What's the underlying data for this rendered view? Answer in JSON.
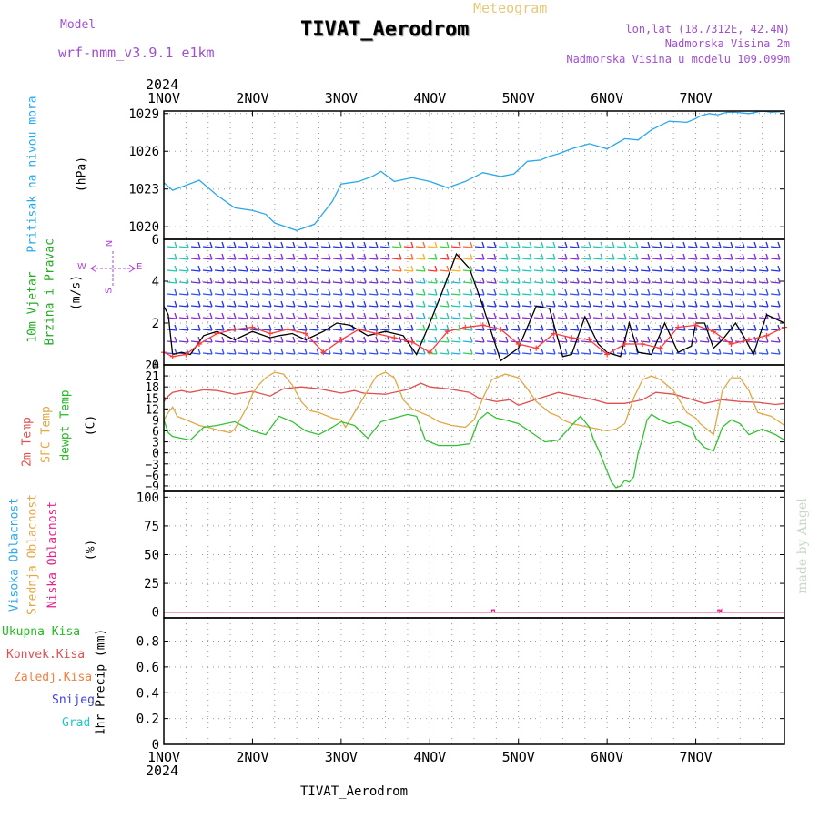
{
  "header": {
    "model_label": "Model",
    "model_name": "wrf-nmm_v3.9.1 e1km",
    "title": "TIVAT_Aerodrom",
    "subtitle": "Meteogram",
    "coords": "lon,lat (18.7312E, 42.4N)",
    "elev_station": "Nadmorska Visina 2m",
    "elev_model": "Nadmorska Visina u modelu 109.099m",
    "year": "2024",
    "footer_station": "TIVAT_Aerodrom",
    "credit": "made by Angel"
  },
  "colors": {
    "pressure": "#2aa8e8",
    "temp2m": "#e05050",
    "sfc": "#e0a848",
    "dew": "#33c233",
    "high": "#2aa8e8",
    "mid": "#e0a848",
    "low": "#e8208c",
    "wind_speed": "#000000",
    "wind_gust": "#ff3a3a",
    "wind_legend": "#b040e0"
  },
  "legend_labels": {
    "pressure": "Pritisak na nivou mora",
    "pressure_unit": "(hPa)",
    "wind1": "10m Vjetar",
    "wind2": "Brzina i Pravac",
    "wind_unit": "(m/s)",
    "compass_n": "N",
    "compass_s": "S",
    "compass_e": "E",
    "compass_w": "W",
    "temp2m": "2m Temp",
    "sfc": "SFC Temp",
    "dew": "dewpt Temp",
    "temp_unit": "(C)",
    "high": "Visoka Oblacnost",
    "mid": "Srednja Oblacnost",
    "low": "Niska Oblacnost",
    "cloud_unit": "(%)",
    "precip_total": "Ukupna Kisa",
    "precip_conv": "Konvek.Kisa",
    "precip_frz": "Zaledj.Kisa",
    "precip_snow": "Snijeg",
    "precip_grad": "Grad",
    "precip_unit": "1hr Precip (mm)"
  },
  "chart_data": [
    {
      "type": "line",
      "panel": "pressure",
      "x_categories": [
        "1NOV",
        "2NOV",
        "3NOV",
        "4NOV",
        "5NOV",
        "6NOV",
        "7NOV"
      ],
      "ylabel": "(hPa)",
      "yticks": [
        1020,
        1023,
        1026,
        1029
      ],
      "ylim": [
        1019,
        1029.2
      ],
      "grid": true,
      "series": [
        {
          "name": "Pritisak na nivou mora",
          "x": [
            0,
            0.1,
            0.25,
            0.4,
            0.6,
            0.8,
            1.0,
            1.15,
            1.25,
            1.5,
            1.7,
            1.9,
            2.0,
            2.2,
            2.35,
            2.45,
            2.6,
            2.8,
            3.0,
            3.2,
            3.4,
            3.6,
            3.8,
            3.95,
            4.1,
            4.25,
            4.35,
            4.45,
            4.6,
            4.8,
            5.0,
            5.2,
            5.35,
            5.5,
            5.7,
            5.9,
            6.0,
            6.05,
            6.15,
            6.25,
            6.35,
            6.45,
            6.6,
            6.75,
            6.85,
            6.95,
            7.0
          ],
          "values": [
            1023.5,
            1022.9,
            1023.3,
            1023.7,
            1022.5,
            1021.5,
            1021.3,
            1021.0,
            1020.3,
            1019.7,
            1020.2,
            1022.0,
            1023.4,
            1023.6,
            1024.0,
            1024.4,
            1023.6,
            1023.9,
            1023.6,
            1023.1,
            1023.6,
            1024.3,
            1024.0,
            1024.2,
            1025.2,
            1025.3,
            1025.6,
            1025.8,
            1026.2,
            1026.6,
            1026.2,
            1027.0,
            1026.9,
            1027.7,
            1028.4,
            1028.3,
            1028.6,
            1028.8,
            1029.0,
            1028.9,
            1029.1,
            1029.1,
            1029.0,
            1029.2,
            1029.1,
            1029.15,
            1029.2
          ]
        }
      ]
    },
    {
      "type": "line",
      "panel": "wind",
      "ylabel": "(m/s)",
      "yticks": [
        0,
        2,
        4,
        6
      ],
      "ylim": [
        0,
        6
      ],
      "grid": true,
      "series": [
        {
          "name": "speed",
          "x": [
            0,
            0.05,
            0.1,
            0.2,
            0.3,
            0.45,
            0.6,
            0.8,
            1.0,
            1.2,
            1.3,
            1.45,
            1.6,
            1.8,
            1.95,
            2.1,
            2.3,
            2.5,
            2.7,
            2.85,
            3.0,
            3.15,
            3.3,
            3.45,
            3.6,
            3.8,
            4.0,
            4.2,
            4.35,
            4.5,
            4.6,
            4.75,
            4.9,
            5.0,
            5.15,
            5.25,
            5.35,
            5.5,
            5.65,
            5.8,
            5.95,
            6.0,
            6.1,
            6.2,
            6.3,
            6.45,
            6.55,
            6.65,
            6.8,
            7.0
          ],
          "values": [
            2.8,
            2.4,
            0.5,
            0.6,
            0.5,
            1.4,
            1.6,
            1.2,
            1.6,
            1.3,
            1.4,
            1.5,
            1.2,
            1.6,
            2.0,
            1.9,
            1.4,
            1.6,
            1.4,
            0.5,
            2.0,
            3.6,
            5.3,
            4.6,
            2.8,
            0.2,
            0.8,
            2.8,
            2.7,
            0.4,
            0.5,
            2.3,
            1.0,
            0.6,
            0.4,
            2.0,
            0.6,
            0.5,
            2.0,
            0.6,
            0.9,
            2.0,
            2.0,
            0.8,
            1.2,
            2.0,
            1.3,
            0.5,
            2.4,
            2.0
          ]
        },
        {
          "name": "gust",
          "x": [
            0,
            0.1,
            0.25,
            0.4,
            0.6,
            0.8,
            1.0,
            1.2,
            1.4,
            1.6,
            1.8,
            2.0,
            2.2,
            2.4,
            2.6,
            2.8,
            3.0,
            3.2,
            3.4,
            3.6,
            3.8,
            4.0,
            4.2,
            4.4,
            4.6,
            4.8,
            5.0,
            5.2,
            5.4,
            5.6,
            5.8,
            6.0,
            6.2,
            6.4,
            6.6,
            6.8,
            7.0
          ],
          "values": [
            0.6,
            0.4,
            0.5,
            1.0,
            1.5,
            1.7,
            1.8,
            1.5,
            1.7,
            1.5,
            0.6,
            1.2,
            1.7,
            1.5,
            1.3,
            1.1,
            0.6,
            1.6,
            1.8,
            1.9,
            1.7,
            1.0,
            0.8,
            1.5,
            1.3,
            1.2,
            0.5,
            1.0,
            1.0,
            0.8,
            1.8,
            1.9,
            1.6,
            1.0,
            1.2,
            1.4,
            1.8
          ]
        }
      ]
    },
    {
      "type": "line",
      "panel": "temperature",
      "ylabel": "(C)",
      "yticks": [
        24,
        21,
        18,
        15,
        12,
        9,
        6,
        3,
        0,
        -3,
        -6,
        -9
      ],
      "ylim": [
        -10.5,
        24
      ],
      "grid": true,
      "series": [
        {
          "name": "2m Temp",
          "x": [
            0,
            0.05,
            0.1,
            0.2,
            0.3,
            0.45,
            0.6,
            0.8,
            1.0,
            1.2,
            1.35,
            1.55,
            1.75,
            2.0,
            2.15,
            2.25,
            2.5,
            2.75,
            2.9,
            3.0,
            3.2,
            3.45,
            3.55,
            3.75,
            3.9,
            4.0,
            4.25,
            4.45,
            4.65,
            4.85,
            5.0,
            5.2,
            5.4,
            5.55,
            5.75,
            5.9,
            6.1,
            6.3,
            6.5,
            6.7,
            6.9,
            7.0
          ],
          "values": [
            14,
            15.5,
            16.5,
            17,
            16.5,
            17.2,
            17,
            16,
            16.8,
            15.5,
            17.5,
            18,
            17.5,
            16.3,
            17,
            16.3,
            16,
            17.3,
            19,
            18,
            17.5,
            16.5,
            15,
            14,
            14.5,
            13,
            15,
            16.5,
            15.5,
            14.5,
            13.5,
            13.5,
            14.5,
            16.5,
            16,
            15,
            13.5,
            14.5,
            14,
            13.8,
            13.2,
            13.5
          ]
        },
        {
          "name": "SFC Temp",
          "x": [
            0,
            0.05,
            0.1,
            0.15,
            0.2,
            0.3,
            0.4,
            0.5,
            0.6,
            0.75,
            0.8,
            0.95,
            1.0,
            1.05,
            1.15,
            1.25,
            1.35,
            1.45,
            1.55,
            1.65,
            1.75,
            1.9,
            2.0,
            2.05,
            2.15,
            2.3,
            2.4,
            2.5,
            2.6,
            2.7,
            2.8,
            2.9,
            3.0,
            3.1,
            3.25,
            3.4,
            3.5,
            3.6,
            3.7,
            3.85,
            4.0,
            4.1,
            4.2,
            4.3,
            4.35,
            4.45,
            4.5,
            4.6,
            4.8,
            5.0,
            5.1,
            5.2,
            5.3,
            5.4,
            5.5,
            5.6,
            5.75,
            5.9,
            6.0,
            6.05,
            6.1,
            6.2,
            6.3,
            6.4,
            6.5,
            6.6,
            6.7,
            6.85,
            7.0
          ],
          "values": [
            9,
            11,
            12.5,
            10,
            9.5,
            8.5,
            7.5,
            7,
            6.3,
            5.5,
            6.5,
            13,
            16,
            18,
            20.5,
            22,
            21.5,
            18.5,
            14,
            11.5,
            11,
            9.5,
            9,
            7,
            11,
            17,
            21,
            22,
            20.5,
            14.5,
            12,
            11,
            10,
            8.5,
            7.5,
            7,
            9,
            15,
            20,
            21.5,
            20.5,
            17.5,
            14,
            12,
            11,
            10,
            9,
            8,
            7,
            6,
            6.5,
            8,
            15,
            20,
            21,
            20,
            17,
            11,
            9.5,
            8,
            7,
            5,
            17,
            20.5,
            20.5,
            17,
            11,
            10,
            7.5
          ]
        },
        {
          "name": "dewpt Temp",
          "x": [
            0,
            0.05,
            0.1,
            0.2,
            0.3,
            0.45,
            0.6,
            0.8,
            1.0,
            1.15,
            1.3,
            1.45,
            1.6,
            1.75,
            1.9,
            2.0,
            2.15,
            2.3,
            2.45,
            2.6,
            2.75,
            2.85,
            2.95,
            3.1,
            3.3,
            3.45,
            3.55,
            3.65,
            3.75,
            3.85,
            4.0,
            4.15,
            4.3,
            4.45,
            4.6,
            4.7,
            4.8,
            4.85,
            4.9,
            4.95,
            5.0,
            5.05,
            5.1,
            5.15,
            5.2,
            5.25,
            5.3,
            5.35,
            5.4,
            5.45,
            5.5,
            5.6,
            5.7,
            5.8,
            5.95,
            6.0,
            6.1,
            6.2,
            6.3,
            6.4,
            6.5,
            6.6,
            6.75,
            6.9,
            7.0
          ],
          "values": [
            9,
            5.5,
            4.5,
            4,
            3.5,
            7,
            7.5,
            8.5,
            6,
            5,
            10,
            8.5,
            6,
            5,
            7,
            8.5,
            7.5,
            4,
            8.5,
            9.5,
            10.5,
            10,
            3.5,
            2,
            2,
            2.5,
            9,
            11,
            9.5,
            9,
            8,
            5.5,
            3,
            3.5,
            7.5,
            10,
            7,
            3.5,
            1,
            -2,
            -5,
            -8,
            -9.5,
            -9,
            -7.5,
            -8,
            -6.5,
            0,
            4,
            9,
            10.5,
            9,
            8,
            8.5,
            7,
            4,
            1.5,
            0.5,
            7,
            9,
            8,
            5,
            6.5,
            5,
            3.5
          ]
        }
      ]
    },
    {
      "type": "line",
      "panel": "cloud",
      "ylabel": "(%)",
      "yticks": [
        0,
        25,
        50,
        75,
        100
      ],
      "ylim": [
        -5,
        105
      ],
      "grid": true,
      "series": [
        {
          "name": "Visoka Oblacnost",
          "x": [
            0,
            7
          ],
          "values": [
            0,
            0
          ]
        },
        {
          "name": "Srednja Oblacnost",
          "x": [
            0,
            7
          ],
          "values": [
            0,
            0
          ]
        },
        {
          "name": "Niska Oblacnost",
          "x": [
            0,
            3.7,
            3.7,
            3.73,
            3.73,
            6.25,
            6.25,
            6.27,
            6.27,
            6.29,
            6.29,
            7
          ],
          "values": [
            0,
            0,
            2,
            2,
            0,
            0,
            2,
            2,
            0,
            2,
            0,
            0
          ]
        }
      ]
    },
    {
      "type": "bar",
      "panel": "precipitation",
      "ylabel": "1hr Precip (mm)",
      "yticks": [
        0,
        0.2,
        0.4,
        0.6,
        0.8
      ],
      "ylim": [
        0,
        0.98
      ],
      "grid": true,
      "series": [
        {
          "name": "Ukupna Kisa",
          "values": []
        },
        {
          "name": "Konvek.Kisa",
          "values": []
        },
        {
          "name": "Zaledj.Kisa",
          "values": []
        },
        {
          "name": "Snijeg",
          "values": []
        },
        {
          "name": "Grad",
          "values": []
        }
      ]
    }
  ]
}
